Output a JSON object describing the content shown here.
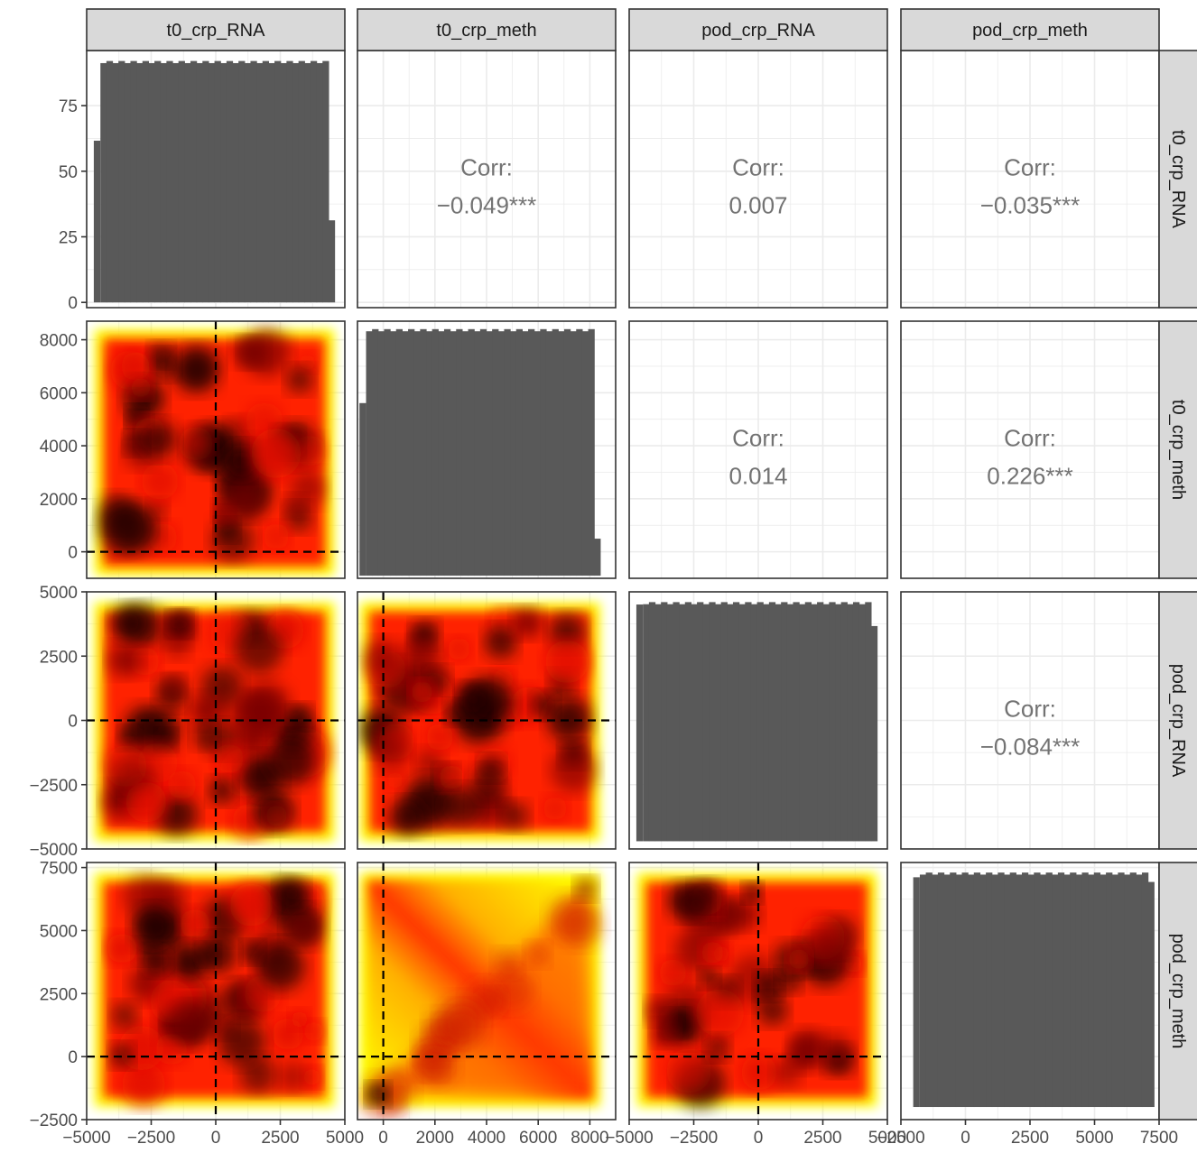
{
  "chart_data": {
    "type": "pairs",
    "variables": [
      "t0_crp_RNA",
      "t0_crp_meth",
      "pod_crp_RNA",
      "pod_crp_meth"
    ],
    "diagonal": "histogram",
    "lower": "density_heatmap",
    "upper": "correlation",
    "corr_label": "Corr:",
    "correlations": [
      {
        "row": "t0_crp_RNA",
        "col": "t0_crp_meth",
        "value": "−0.049***"
      },
      {
        "row": "t0_crp_RNA",
        "col": "pod_crp_RNA",
        "value": "0.007"
      },
      {
        "row": "t0_crp_RNA",
        "col": "pod_crp_meth",
        "value": "−0.035***"
      },
      {
        "row": "t0_crp_meth",
        "col": "pod_crp_RNA",
        "value": "0.014"
      },
      {
        "row": "t0_crp_meth",
        "col": "pod_crp_meth",
        "value": "0.226***"
      },
      {
        "row": "pod_crp_RNA",
        "col": "pod_crp_meth",
        "value": "−0.084***"
      }
    ],
    "histogram_counts_approx": {
      "t0_crp_RNA": 92,
      "t0_crp_meth": 92,
      "pod_crp_RNA": 92,
      "pod_crp_meth": 92
    },
    "x_ranges": {
      "t0_crp_RNA": [
        -5000,
        5000
      ],
      "t0_crp_meth": [
        -1000,
        9000
      ],
      "pod_crp_RNA": [
        -5000,
        5000
      ],
      "pod_crp_meth": [
        -2500,
        7500
      ]
    },
    "data_ranges": {
      "t0_crp_RNA": [
        -4700,
        4600
      ],
      "t0_crp_meth": [
        -900,
        8400
      ],
      "pod_crp_RNA": [
        -4700,
        4600
      ],
      "pod_crp_meth": [
        -2000,
        7300
      ]
    },
    "y_axes": [
      {
        "row": "t0_crp_RNA",
        "range": [
          -2,
          96
        ],
        "ticks": [
          0,
          25,
          50,
          75
        ],
        "tick_labels": [
          "0",
          "25",
          "50",
          "75"
        ]
      },
      {
        "row": "t0_crp_meth",
        "range": [
          -1000,
          8700
        ],
        "ticks": [
          0,
          2000,
          4000,
          6000,
          8000
        ],
        "tick_labels": [
          "0",
          "2000",
          "4000",
          "6000",
          "8000"
        ]
      },
      {
        "row": "pod_crp_RNA",
        "range": [
          -5000,
          5000
        ],
        "ticks": [
          -5000,
          -2500,
          0,
          2500,
          5000
        ],
        "tick_labels": [
          "−5000",
          "−2500",
          "0",
          "2500",
          "5000"
        ]
      },
      {
        "row": "pod_crp_meth",
        "range": [
          -2500,
          7700
        ],
        "ticks": [
          -2500,
          0,
          2500,
          5000,
          7500
        ],
        "tick_labels": [
          "−2500",
          "0",
          "2500",
          "5000",
          "7500"
        ]
      }
    ],
    "x_axes": [
      {
        "col": "t0_crp_RNA",
        "ticks": [
          -5000,
          -2500,
          0,
          2500,
          5000
        ],
        "tick_labels": [
          "−5000",
          "−2500",
          "0",
          "2500",
          "5000"
        ]
      },
      {
        "col": "t0_crp_meth",
        "ticks": [
          0,
          2000,
          4000,
          6000,
          8000
        ],
        "tick_labels": [
          "0",
          "2000",
          "4000",
          "6000",
          "8000"
        ]
      },
      {
        "col": "pod_crp_RNA",
        "ticks": [
          -5000,
          -2500,
          0,
          2500,
          5000
        ],
        "tick_labels": [
          "−5000",
          "−2500",
          "0",
          "2500",
          "5000"
        ]
      },
      {
        "col": "pod_crp_meth",
        "ticks": [
          -2500,
          0,
          2500,
          5000,
          7500
        ],
        "tick_labels": [
          "−2500",
          "0",
          "2500",
          "5000",
          "7500"
        ]
      }
    ],
    "reference_lines": {
      "x": 0,
      "y": 0,
      "style": "dashed"
    },
    "colors": {
      "bar": "#595959",
      "density_low": "#ffff00",
      "density_mid": "#ff2200",
      "density_high": "#1a0000",
      "strip_fill": "#d9d9d9",
      "grid": "#ebebeb",
      "panel_border": "#333333",
      "corr_text": "#737373"
    },
    "grid": true
  }
}
